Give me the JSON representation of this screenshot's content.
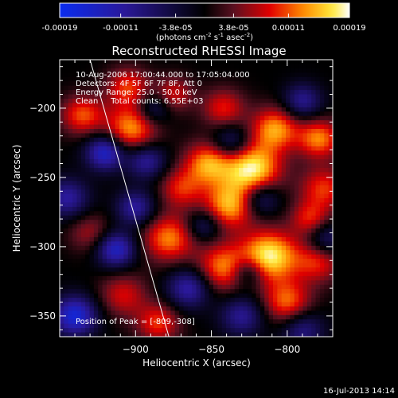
{
  "colorbar": {
    "tick_labels": [
      "-0.00019",
      "-0.00011",
      "-3.8e-05",
      "3.8e-05",
      "0.00011",
      "0.00019"
    ],
    "tick_values": [
      -0.00019,
      -0.00011,
      -3.8e-05,
      3.8e-05,
      0.00011,
      0.00019
    ],
    "range": [
      -0.00019,
      0.00019
    ],
    "units_parts": {
      "a": "(photons cm",
      "b": "-2",
      "c": " s",
      "d": "-1",
      "e": " asec",
      "f": "-2",
      "g": ")"
    }
  },
  "chart_data": {
    "type": "heatmap",
    "title": "Reconstructed RHESSI Image",
    "xlabel": "Heliocentric X (arcsec)",
    "ylabel": "Heliocentric Y (arcsec)",
    "xlim": [
      -950,
      -770
    ],
    "ylim": [
      -365,
      -165
    ],
    "x_ticks": [
      -900,
      -850,
      -800
    ],
    "x_tick_labels": [
      "−900",
      "−850",
      "−800"
    ],
    "y_ticks": [
      -350,
      -300,
      -250,
      -200
    ],
    "y_tick_labels": [
      "−350",
      "−300",
      "−250",
      "−200"
    ],
    "colormap": "blue-black-red-yellow-white",
    "annotations": [
      "10-Aug-2006 17:00:44.000 to 17:05:04.000",
      "Detectors: 4F 5F 6F 7F 8F, Att 0",
      "Energy Range: 25.0 - 50.0 keV",
      "Clean     Total counts: 6.55E+03"
    ],
    "peak_label": "Position of Peak = [-809,-308]",
    "peak": [
      -809,
      -308
    ],
    "limb_line": [
      [
        -930,
        -165
      ],
      [
        -878,
        -365
      ]
    ],
    "blobs": [
      {
        "x": -823,
        "y": -244,
        "v": 1.0,
        "s": 13
      },
      {
        "x": -852,
        "y": -240,
        "v": 0.75,
        "s": 11
      },
      {
        "x": -838,
        "y": -270,
        "v": 0.8,
        "s": 12
      },
      {
        "x": -812,
        "y": -307,
        "v": 1.0,
        "s": 13
      },
      {
        "x": -780,
        "y": -310,
        "v": 0.55,
        "s": 11
      },
      {
        "x": -800,
        "y": -340,
        "v": 0.65,
        "s": 11
      },
      {
        "x": -842,
        "y": -315,
        "v": 0.7,
        "s": 12
      },
      {
        "x": -808,
        "y": -215,
        "v": 0.75,
        "s": 11
      },
      {
        "x": -779,
        "y": -222,
        "v": 0.7,
        "s": 10
      },
      {
        "x": -878,
        "y": -294,
        "v": 0.7,
        "s": 12
      },
      {
        "x": -870,
        "y": -258,
        "v": 0.5,
        "s": 10
      },
      {
        "x": -903,
        "y": -215,
        "v": 0.75,
        "s": 12
      },
      {
        "x": -905,
        "y": -185,
        "v": 0.55,
        "s": 10
      },
      {
        "x": -935,
        "y": -205,
        "v": 0.6,
        "s": 10
      },
      {
        "x": -908,
        "y": -335,
        "v": 0.45,
        "s": 11
      },
      {
        "x": -885,
        "y": -355,
        "v": 0.55,
        "s": 10
      },
      {
        "x": -776,
        "y": -258,
        "v": 0.55,
        "s": 11
      },
      {
        "x": -875,
        "y": -190,
        "v": 0.45,
        "s": 9
      },
      {
        "x": -930,
        "y": -290,
        "v": 0.35,
        "s": 10
      },
      {
        "x": -842,
        "y": -200,
        "v": 0.5,
        "s": 10
      },
      {
        "x": -785,
        "y": -280,
        "v": 0.5,
        "s": 9
      },
      {
        "x": -920,
        "y": -232,
        "v": -0.85,
        "s": 9
      },
      {
        "x": -893,
        "y": -238,
        "v": -0.6,
        "s": 9
      },
      {
        "x": -945,
        "y": -265,
        "v": -0.6,
        "s": 10
      },
      {
        "x": -913,
        "y": -302,
        "v": -0.8,
        "s": 9
      },
      {
        "x": -940,
        "y": -350,
        "v": -0.9,
        "s": 10
      },
      {
        "x": -900,
        "y": -272,
        "v": -0.6,
        "s": 9
      },
      {
        "x": -865,
        "y": -330,
        "v": -0.65,
        "s": 10
      },
      {
        "x": -855,
        "y": -285,
        "v": -0.45,
        "s": 8
      },
      {
        "x": -818,
        "y": -265,
        "v": -0.55,
        "s": 9
      },
      {
        "x": -837,
        "y": -225,
        "v": -0.5,
        "s": 9
      },
      {
        "x": -830,
        "y": -350,
        "v": -0.55,
        "s": 10
      },
      {
        "x": -790,
        "y": -195,
        "v": -0.55,
        "s": 9
      },
      {
        "x": -790,
        "y": -360,
        "v": -0.5,
        "s": 10
      },
      {
        "x": -826,
        "y": -318,
        "v": -0.55,
        "s": 8
      },
      {
        "x": -775,
        "y": -295,
        "v": -0.5,
        "s": 9
      },
      {
        "x": -888,
        "y": -200,
        "v": -0.45,
        "s": 8
      }
    ]
  },
  "footer": {
    "timestamp": "16-Jul-2013 14:14"
  },
  "colors": {
    "background": "#000000",
    "text": "#ffffff",
    "colormap_stops": [
      "#0a2cf0",
      "#2a1898",
      "#000000",
      "#5a1020",
      "#e00000",
      "#ff8a00",
      "#ffe83a",
      "#ffffff"
    ]
  }
}
